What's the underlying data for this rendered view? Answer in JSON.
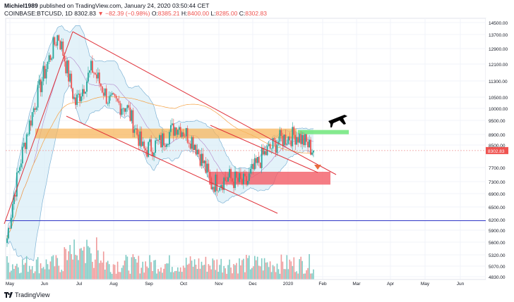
{
  "header": {
    "publisher_name": "Michiel1989",
    "publisher_rest": " published on TradingView.com, January 24, 2020 03:50:44 CET",
    "symbol": "COINBASE:BTCUSD, 1D",
    "last": "8302.83",
    "change": "−82.39 (−0.98%)",
    "ohlc": {
      "o_label": "O:",
      "o": "8385.21",
      "h_label": "H:",
      "h": "8400.00",
      "l_label": "L:",
      "l": "8285.00",
      "c_label": "C:",
      "c": "8302.83"
    }
  },
  "footer": {
    "brand": "TradingView"
  },
  "colors": {
    "up": "#26a69a",
    "down": "#ef5350",
    "channel": "#e0323a",
    "support": "#3137c8",
    "orange_zone": "#f7b65c",
    "red_zone": "#f25c66",
    "green_zone": "#6ee67a",
    "band_fill": "#d9edf7"
  },
  "icons": [
    "airplane-icon",
    "tradingview-logo-icon"
  ],
  "chart_data": {
    "type": "candlestick",
    "symbol": "COINBASE:BTCUSD",
    "interval": "1D",
    "ylim": [
      4830,
      14500
    ],
    "y_ticks": [
      14500,
      13700,
      12900,
      12100,
      11300,
      10500,
      10000,
      9500,
      8900,
      8500,
      7700,
      7300,
      6900,
      6500,
      6200,
      5900,
      5600,
      5320,
      5070,
      4830
    ],
    "y_tick_labels": [
      "14500.00",
      "13700.00",
      "12900.00",
      "12100.00",
      "11300.00",
      "10500.00",
      "10000.00",
      "9500.00",
      "8900.00",
      "8500.00",
      "7700.00",
      "7300.00",
      "6900.00",
      "6500.00",
      "6200.00",
      "5900.00",
      "5600.00",
      "5320.00",
      "5070.00",
      "4830.00"
    ],
    "x_tick_labels": [
      "May",
      "Jun",
      "Jul",
      "Aug",
      "Sep",
      "Oct",
      "Nov",
      "Dec",
      "2020",
      "Feb",
      "Mar",
      "Apr",
      "May",
      "Jun"
    ],
    "last_price_label": "8302.83",
    "close_series": [
      [
        "May",
        5700
      ],
      [
        "Jun",
        8500
      ],
      [
        "Jul",
        11200
      ],
      [
        "Jul",
        13700
      ],
      [
        "Aug",
        10200
      ],
      [
        "Aug",
        11900
      ],
      [
        "Sep",
        10300
      ],
      [
        "Sep",
        10100
      ],
      [
        "Oct",
        8300
      ],
      [
        "Oct",
        8600
      ],
      [
        "Nov",
        9300
      ],
      [
        "Nov",
        8600
      ],
      [
        "Dec",
        7200
      ],
      [
        "Dec",
        7400
      ],
      [
        "2020",
        7200
      ],
      [
        "2020",
        8100
      ],
      [
        "2020",
        8700
      ],
      [
        "2020",
        8900
      ],
      [
        "2020",
        8302.83
      ]
    ],
    "annotations": {
      "orange_zone": [
        8750,
        9150
      ],
      "red_zone": [
        7200,
        7580
      ],
      "green_zone": [
        8950,
        9030
      ],
      "horizontal_support": 6170,
      "arrow": "down",
      "icon": "airplane"
    }
  }
}
